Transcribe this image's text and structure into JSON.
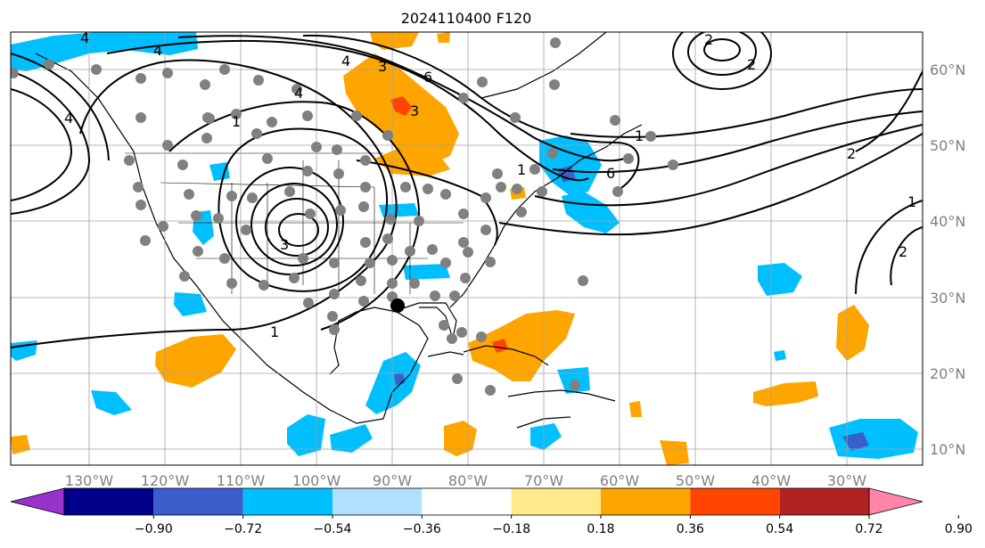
{
  "title": "2024110400 F120",
  "lat_labels": [
    "60°N",
    "50°N",
    "40°N",
    "30°N",
    "20°N",
    "10°N"
  ],
  "lon_labels": [
    "130°W",
    "120°W",
    "110°W",
    "100°W",
    "90°W",
    "80°W",
    "70°W",
    "60°W",
    "50°W",
    "40°W",
    "30°W"
  ],
  "colorbar": {
    "ticks": [
      "−0.90",
      "−0.72",
      "−0.54",
      "−0.36",
      "−0.18",
      "0.18",
      "0.36",
      "0.54",
      "0.72",
      "0.90"
    ],
    "colors": [
      "#9932cc",
      "#00008b",
      "#3a5fcd",
      "#00bfff",
      "#b0e0ff",
      "#ffffff",
      "#ffe98a",
      "#ffa500",
      "#ff4500",
      "#b22222",
      "#ff85aa"
    ]
  },
  "contour_labels": [
    "4",
    "4",
    "4",
    "4",
    "3",
    "3",
    "6",
    "3",
    "1",
    "2",
    "1",
    "1",
    "2",
    "4",
    "2",
    "2",
    "1",
    "6",
    "1"
  ],
  "colors": {
    "grid": "#a0a0a0",
    "station": "#808080",
    "storm_marker": "#000000",
    "positive_fill": "#ffa500",
    "negative_fill": "#00bfff"
  }
}
